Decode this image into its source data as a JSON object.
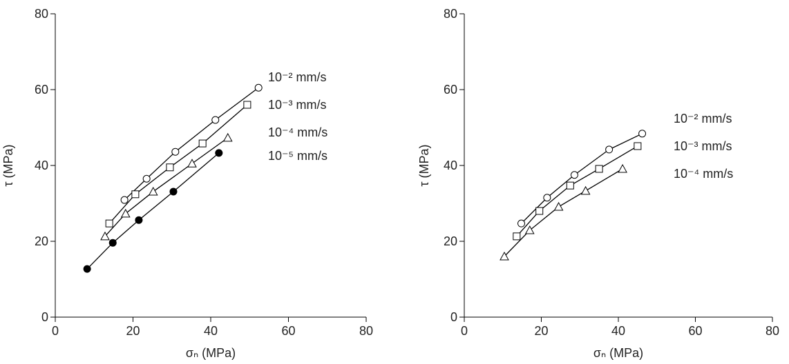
{
  "chart_data": [
    {
      "type": "line",
      "xlabel": "σₙ (MPa)",
      "ylabel": "τ (MPa)",
      "xlim": [
        0,
        80
      ],
      "ylim": [
        0,
        80
      ],
      "xticks": [
        0,
        20,
        40,
        60,
        80
      ],
      "yticks": [
        0,
        20,
        40,
        60,
        80
      ],
      "series": [
        {
          "name": "10⁻² mm/s",
          "color": "#000000",
          "marker": "circle",
          "filled": false,
          "x": [
            17.8,
            23.5,
            30.9,
            41.2,
            52.3
          ],
          "values": [
            30.9,
            36.5,
            43.6,
            52,
            60.5
          ]
        },
        {
          "name": "10⁻³ mm/s",
          "color": "#000000",
          "marker": "square",
          "filled": false,
          "x": [
            13.9,
            20.6,
            29.5,
            37.9,
            49.4
          ],
          "values": [
            24.7,
            32.4,
            39.5,
            45.8,
            56
          ]
        },
        {
          "name": "10⁻⁴ mm/s",
          "color": "#000000",
          "marker": "triangle",
          "filled": false,
          "x": [
            12.8,
            18.1,
            25.2,
            35.2,
            44.4
          ],
          "values": [
            21.3,
            27.3,
            33.1,
            40.5,
            47.3
          ]
        },
        {
          "name": "10⁻⁵ mm/s",
          "color": "#000000",
          "marker": "circle",
          "filled": true,
          "x": [
            8.2,
            14.8,
            21.5,
            30.4,
            42.1
          ],
          "values": [
            12.7,
            19.6,
            25.6,
            33.1,
            43.3
          ]
        }
      ]
    },
    {
      "type": "line",
      "xlabel": "σₙ (MPa)",
      "ylabel": "τ (MPa)",
      "xlim": [
        0,
        80
      ],
      "ylim": [
        0,
        80
      ],
      "xticks": [
        0,
        20,
        40,
        60,
        80
      ],
      "yticks": [
        0,
        20,
        40,
        60,
        80
      ],
      "series": [
        {
          "name": "10⁻² mm/s",
          "color": "#000000",
          "marker": "circle",
          "filled": false,
          "x": [
            14.8,
            21.5,
            28.6,
            37.6,
            46.2
          ],
          "values": [
            24.7,
            31.5,
            37.5,
            44.2,
            48.4
          ]
        },
        {
          "name": "10⁻³ mm/s",
          "color": "#000000",
          "marker": "square",
          "filled": false,
          "x": [
            13.6,
            19.5,
            27.5,
            35,
            45
          ],
          "values": [
            21.3,
            28,
            34.7,
            39.1,
            45.1
          ]
        },
        {
          "name": "10⁻⁴ mm/s",
          "color": "#000000",
          "marker": "triangle",
          "filled": false,
          "x": [
            10.4,
            17,
            24.5,
            31.5,
            41.1
          ],
          "values": [
            16,
            22.9,
            29.1,
            33.3,
            39.1
          ]
        }
      ]
    }
  ]
}
